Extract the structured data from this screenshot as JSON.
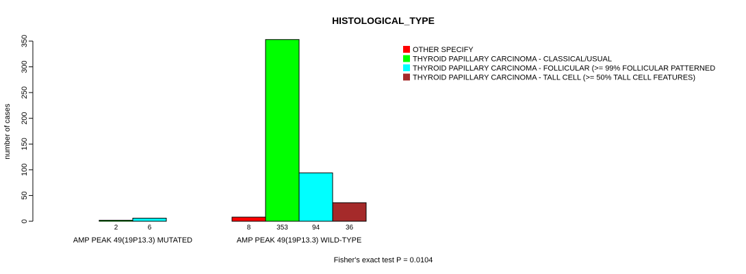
{
  "chart_data": {
    "type": "bar",
    "title": "HISTOLOGICAL_TYPE",
    "ylabel": "number of cases",
    "xlabel": "",
    "ylim": [
      0,
      350
    ],
    "yticks": [
      0,
      50,
      100,
      150,
      200,
      250,
      300,
      350
    ],
    "groups": [
      "AMP PEAK 49(19P13.3) MUTATED",
      "AMP PEAK 49(19P13.3) WILD-TYPE"
    ],
    "series": [
      {
        "name": "OTHER  SPECIFY",
        "color": "#ff0000",
        "values": [
          0,
          8
        ]
      },
      {
        "name": "THYROID PAPILLARY CARCINOMA - CLASSICAL/USUAL",
        "color": "#00ff00",
        "values": [
          2,
          353
        ]
      },
      {
        "name": "THYROID PAPILLARY CARCINOMA - FOLLICULAR (>= 99% FOLLICULAR PATTERNED",
        "color": "#00ffff",
        "values": [
          6,
          94
        ]
      },
      {
        "name": "THYROID PAPILLARY CARCINOMA - TALL CELL (>= 50% TALL CELL FEATURES)",
        "color": "#a52a2a",
        "values": [
          0,
          36
        ]
      }
    ],
    "value_labels": [
      [
        "",
        "2",
        "6",
        ""
      ],
      [
        "8",
        "353",
        "94",
        "36"
      ]
    ],
    "footer": "Fisher's exact test P = 0.0104",
    "legend_position": "top-right"
  }
}
